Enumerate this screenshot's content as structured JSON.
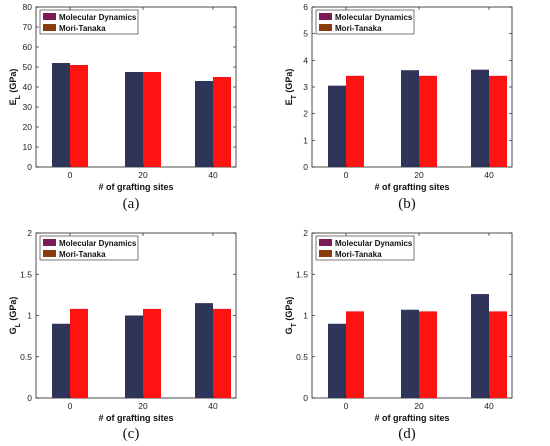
{
  "colors": {
    "md": "#2e3559",
    "mt": "#ff1212",
    "md_legend": "#7a1b55",
    "mt_legend": "#8a3a0e"
  },
  "chart_data": [
    {
      "type": "bar",
      "panel_label": "(a)",
      "ylabel": "E",
      "ylabel_sub": "L",
      "ylabel_unit": "(GPa)",
      "xlabel": "# of grafting sites",
      "categories": [
        "0",
        "20",
        "40"
      ],
      "ylim": [
        0,
        80
      ],
      "yticks": [
        0,
        10,
        20,
        30,
        40,
        50,
        60,
        70,
        80
      ],
      "legend_position": "top-left",
      "series": [
        {
          "name": "Molecular Dynamics",
          "values": [
            52,
            47.5,
            43
          ]
        },
        {
          "name": "Mori-Tanaka",
          "values": [
            51,
            47.5,
            45
          ]
        }
      ]
    },
    {
      "type": "bar",
      "panel_label": "(b)",
      "ylabel": "E",
      "ylabel_sub": "T",
      "ylabel_unit": "(GPa)",
      "xlabel": "# of grafting sites",
      "categories": [
        "0",
        "20",
        "40"
      ],
      "ylim": [
        0,
        6
      ],
      "yticks": [
        0,
        1,
        2,
        3,
        4,
        5,
        6
      ],
      "legend_position": "top-left",
      "series": [
        {
          "name": "Molecular Dynamics",
          "values": [
            3.05,
            3.63,
            3.65
          ]
        },
        {
          "name": "Mori-Tanaka",
          "values": [
            3.42,
            3.42,
            3.42
          ]
        }
      ]
    },
    {
      "type": "bar",
      "panel_label": "(c)",
      "ylabel": "G",
      "ylabel_sub": "L",
      "ylabel_unit": "(GPa)",
      "xlabel": "# of grafting sites",
      "categories": [
        "0",
        "20",
        "40"
      ],
      "ylim": [
        0,
        2
      ],
      "yticks": [
        0,
        0.5,
        1,
        1.5,
        2
      ],
      "legend_position": "top-left",
      "series": [
        {
          "name": "Molecular Dynamics",
          "values": [
            0.9,
            1.0,
            1.15
          ]
        },
        {
          "name": "Mori-Tanaka",
          "values": [
            1.08,
            1.08,
            1.08
          ]
        }
      ]
    },
    {
      "type": "bar",
      "panel_label": "(d)",
      "ylabel": "G",
      "ylabel_sub": "T",
      "ylabel_unit": "(GPa)",
      "xlabel": "# of grafting sites",
      "categories": [
        "0",
        "20",
        "40"
      ],
      "ylim": [
        0,
        2
      ],
      "yticks": [
        0,
        0.5,
        1,
        1.5,
        2
      ],
      "legend_position": "top-left",
      "series": [
        {
          "name": "Molecular Dynamics",
          "values": [
            0.9,
            1.07,
            1.26
          ]
        },
        {
          "name": "Mori-Tanaka",
          "values": [
            1.05,
            1.05,
            1.05
          ]
        }
      ]
    }
  ]
}
